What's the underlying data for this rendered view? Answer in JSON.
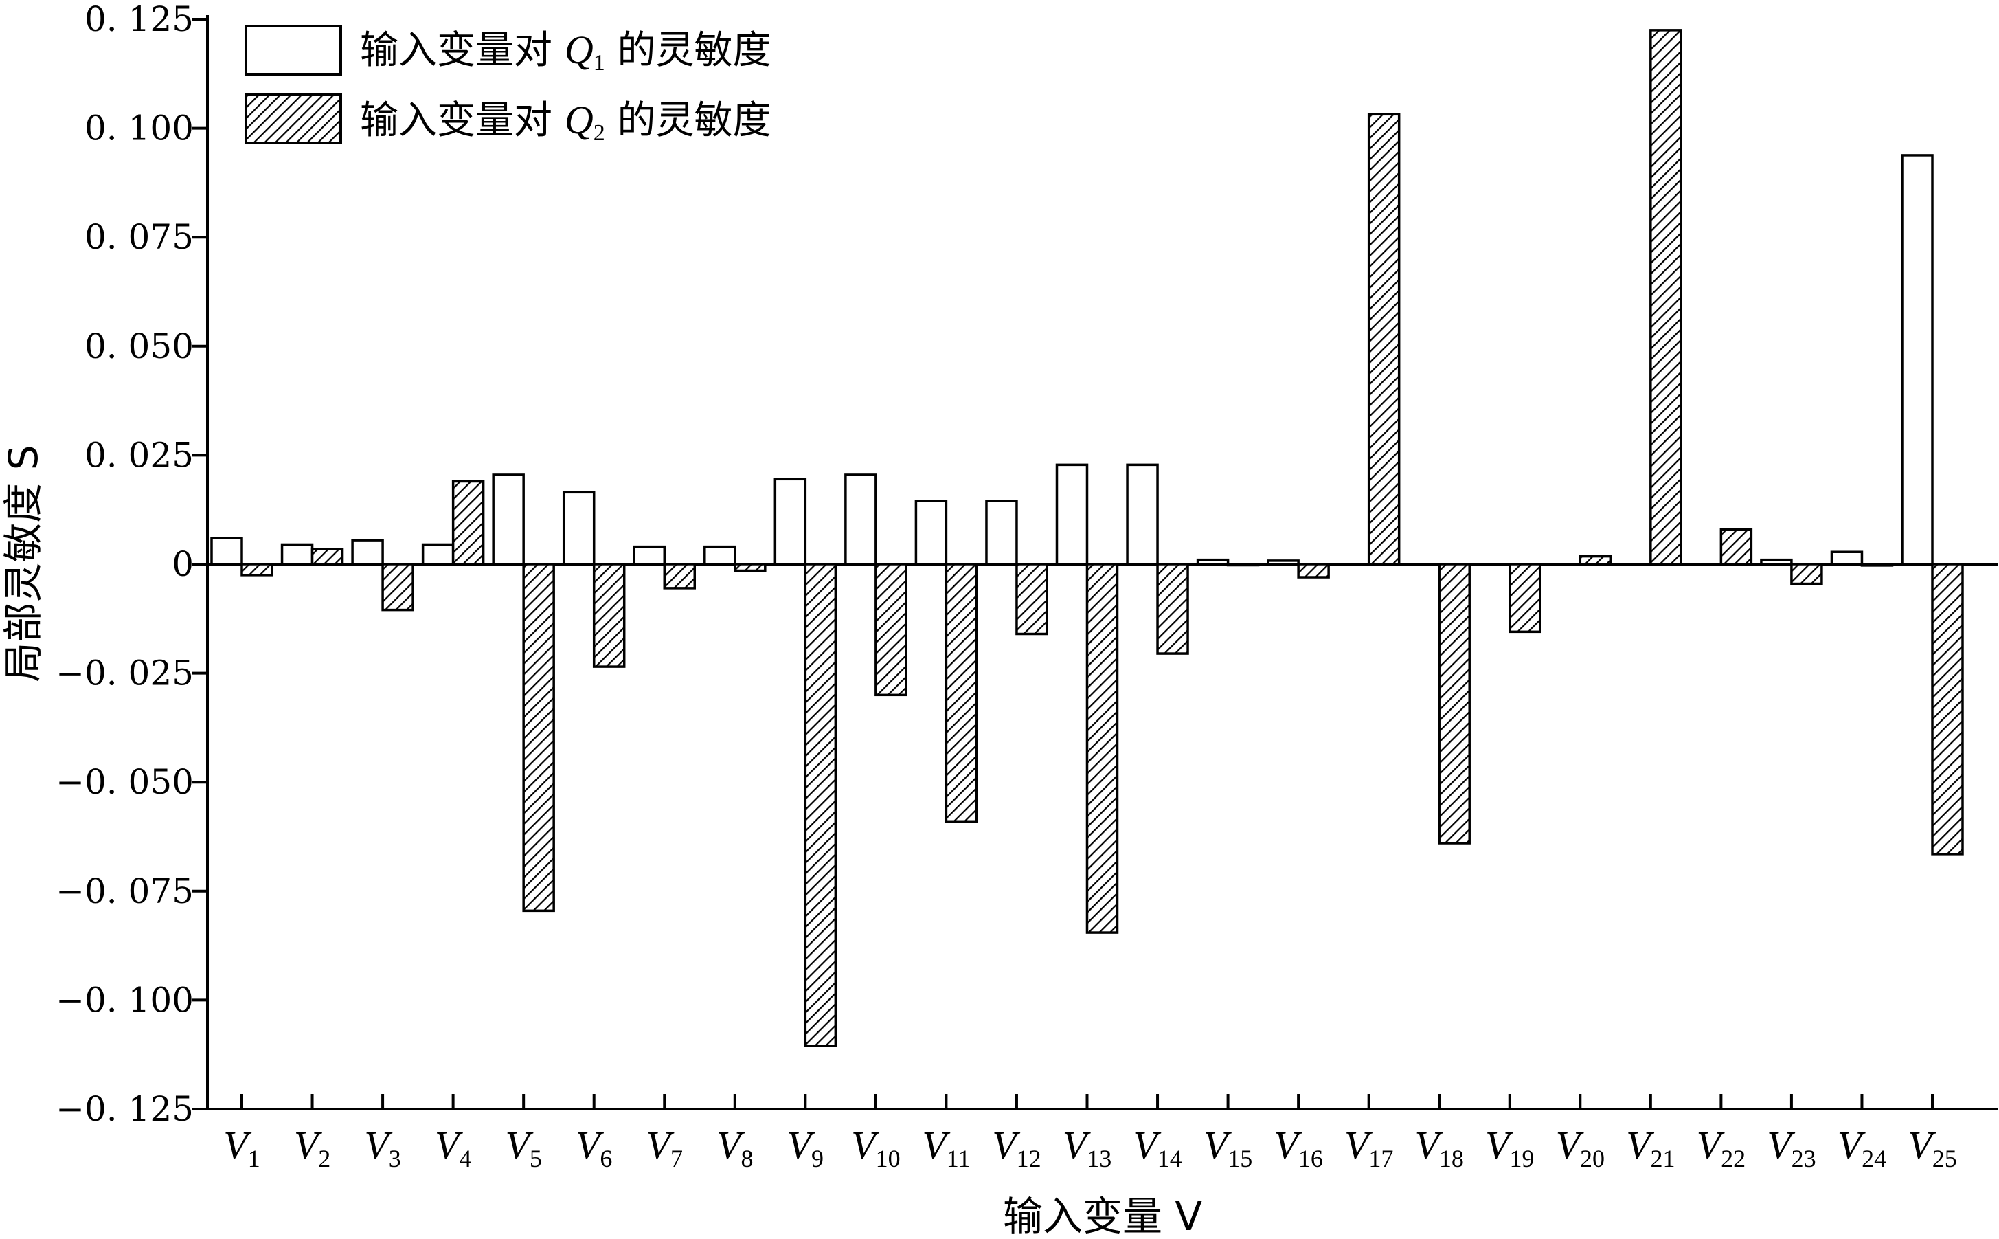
{
  "chart_data": {
    "type": "bar",
    "xlabel": "输入变量 V",
    "ylabel": "局部灵敏度 S",
    "ylim": [
      -0.125,
      0.125
    ],
    "yticks": [
      0.125,
      0.1,
      0.075,
      0.05,
      0.025,
      0,
      -0.025,
      -0.05,
      -0.075,
      -0.1,
      -0.125
    ],
    "ytick_labels": [
      "0. 125",
      "0. 100",
      "0. 075",
      "0. 050",
      "0. 025",
      "0",
      "−0. 025",
      "−0. 050",
      "−0. 075",
      "−0. 100",
      "−0. 125"
    ],
    "categories": [
      "V1",
      "V2",
      "V3",
      "V4",
      "V5",
      "V6",
      "V7",
      "V8",
      "V9",
      "V10",
      "V11",
      "V12",
      "V13",
      "V14",
      "V15",
      "V16",
      "V17",
      "V18",
      "V19",
      "V20",
      "V21",
      "V22",
      "V23",
      "V24",
      "V25"
    ],
    "category_parts": [
      {
        "main": "V",
        "sub": "1"
      },
      {
        "main": "V",
        "sub": "2"
      },
      {
        "main": "V",
        "sub": "3"
      },
      {
        "main": "V",
        "sub": "4"
      },
      {
        "main": "V",
        "sub": "5"
      },
      {
        "main": "V",
        "sub": "6"
      },
      {
        "main": "V",
        "sub": "7"
      },
      {
        "main": "V",
        "sub": "8"
      },
      {
        "main": "V",
        "sub": "9"
      },
      {
        "main": "V",
        "sub": "10"
      },
      {
        "main": "V",
        "sub": "11"
      },
      {
        "main": "V",
        "sub": "12"
      },
      {
        "main": "V",
        "sub": "13"
      },
      {
        "main": "V",
        "sub": "14"
      },
      {
        "main": "V",
        "sub": "15"
      },
      {
        "main": "V",
        "sub": "16"
      },
      {
        "main": "V",
        "sub": "17"
      },
      {
        "main": "V",
        "sub": "18"
      },
      {
        "main": "V",
        "sub": "19"
      },
      {
        "main": "V",
        "sub": "20"
      },
      {
        "main": "V",
        "sub": "21"
      },
      {
        "main": "V",
        "sub": "22"
      },
      {
        "main": "V",
        "sub": "23"
      },
      {
        "main": "V",
        "sub": "24"
      },
      {
        "main": "V",
        "sub": "25"
      }
    ],
    "series": [
      {
        "name": "输入变量对 Q1 的灵敏度",
        "legend_parts": {
          "pre": "输入变量对 ",
          "q": "Q",
          "sub": "1",
          "post": " 的灵敏度"
        },
        "fill": "white",
        "values": [
          0.006,
          0.0045,
          0.0055,
          0.0045,
          0.0205,
          0.0165,
          0.004,
          0.004,
          0.0195,
          0.0205,
          0.0145,
          0.0145,
          0.0228,
          0.0228,
          0.001,
          0.0008,
          0,
          0,
          0,
          0,
          0,
          0,
          0.001,
          0.0028,
          0.0938
        ]
      },
      {
        "name": "输入变量对 Q2 的灵敏度",
        "legend_parts": {
          "pre": "输入变量对 ",
          "q": "Q",
          "sub": "2",
          "post": " 的灵敏度"
        },
        "fill": "hatch",
        "values": [
          -0.0025,
          0.0035,
          -0.0105,
          0.019,
          -0.0795,
          -0.0235,
          -0.0055,
          -0.0015,
          -0.1105,
          -0.03,
          -0.059,
          -0.016,
          -0.0845,
          -0.0205,
          -0.0002,
          -0.003,
          0.1032,
          -0.064,
          -0.0155,
          0.0018,
          0.1225,
          0.008,
          -0.0045,
          -0.0003,
          -0.0665
        ]
      }
    ],
    "legend_position": "top-left",
    "grid": false
  }
}
